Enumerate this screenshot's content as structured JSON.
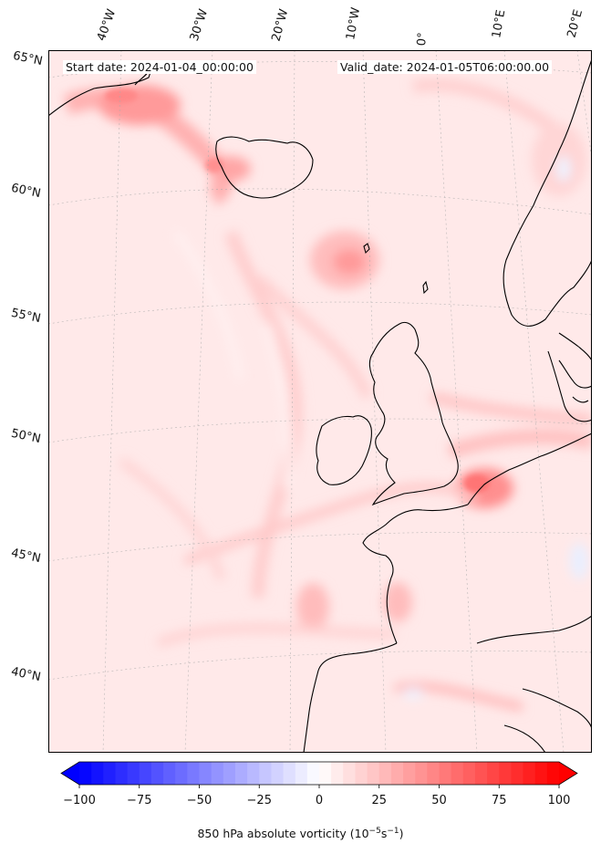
{
  "map": {
    "start_date": "Start date: 2024-01-04_00:00:00",
    "valid_date": "Valid_date: 2024-01-05T06:00:00.00",
    "field": "850 hPa absolute vorticity",
    "longitude_labels": [
      "40°W",
      "30°W",
      "20°W",
      "10°W",
      "0°",
      "10°E",
      "20°E"
    ],
    "latitude_labels": [
      "65°N",
      "60°N",
      "55°N",
      "50°N",
      "45°N",
      "40°N"
    ],
    "feature_icons": [
      "coastline",
      "graticule",
      "vorticity-shading"
    ]
  },
  "colorbar": {
    "label_main": "850 hPa absolute vorticity (10",
    "label_exp1": "−5",
    "label_mid": "s",
    "label_exp2": "−1",
    "label_end": ")",
    "ticks": [
      "−100",
      "−75",
      "−50",
      "−25",
      "0",
      "25",
      "50",
      "75",
      "100"
    ],
    "tick_values": [
      -100,
      -75,
      -50,
      -25,
      0,
      25,
      50,
      75,
      100
    ],
    "min": -100,
    "max": 100,
    "extend": "both",
    "cmap": "bwr",
    "colors": {
      "low": "#0000ff",
      "mid": "#ffffff",
      "high": "#ff0000"
    }
  }
}
